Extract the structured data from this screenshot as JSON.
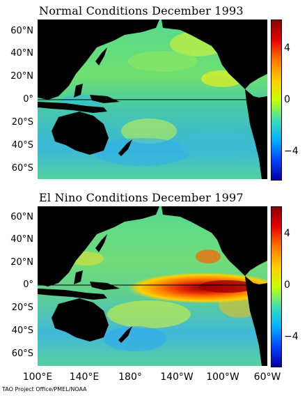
{
  "panels": [
    {
      "title": "Normal Conditions December 1993",
      "lat_labels": [
        "60°N",
        "40°N",
        "20°N",
        "0°",
        "20°S",
        "40°S",
        "60°S"
      ],
      "colorbar_ticks": [
        "4",
        "0",
        "−4"
      ]
    },
    {
      "title": "El Nino Conditions December 1997",
      "lat_labels": [
        "60°N",
        "40°N",
        "20°N",
        "0°",
        "20°S",
        "40°S",
        "60°S"
      ],
      "colorbar_ticks": [
        "4",
        "0",
        "−4"
      ]
    }
  ],
  "lon_labels": [
    "100°E",
    "140°E",
    "180°",
    "140°W",
    "100°W",
    "60°W"
  ],
  "credit": "TAO Project Office/PMEL/NOAA",
  "colors": {
    "ocean_base": "#40c8a0",
    "land": "#000000",
    "colorbar_top": "#8b0000",
    "colorbar_mid": "#c8ff00",
    "colorbar_bottom": "#0000a0"
  }
}
